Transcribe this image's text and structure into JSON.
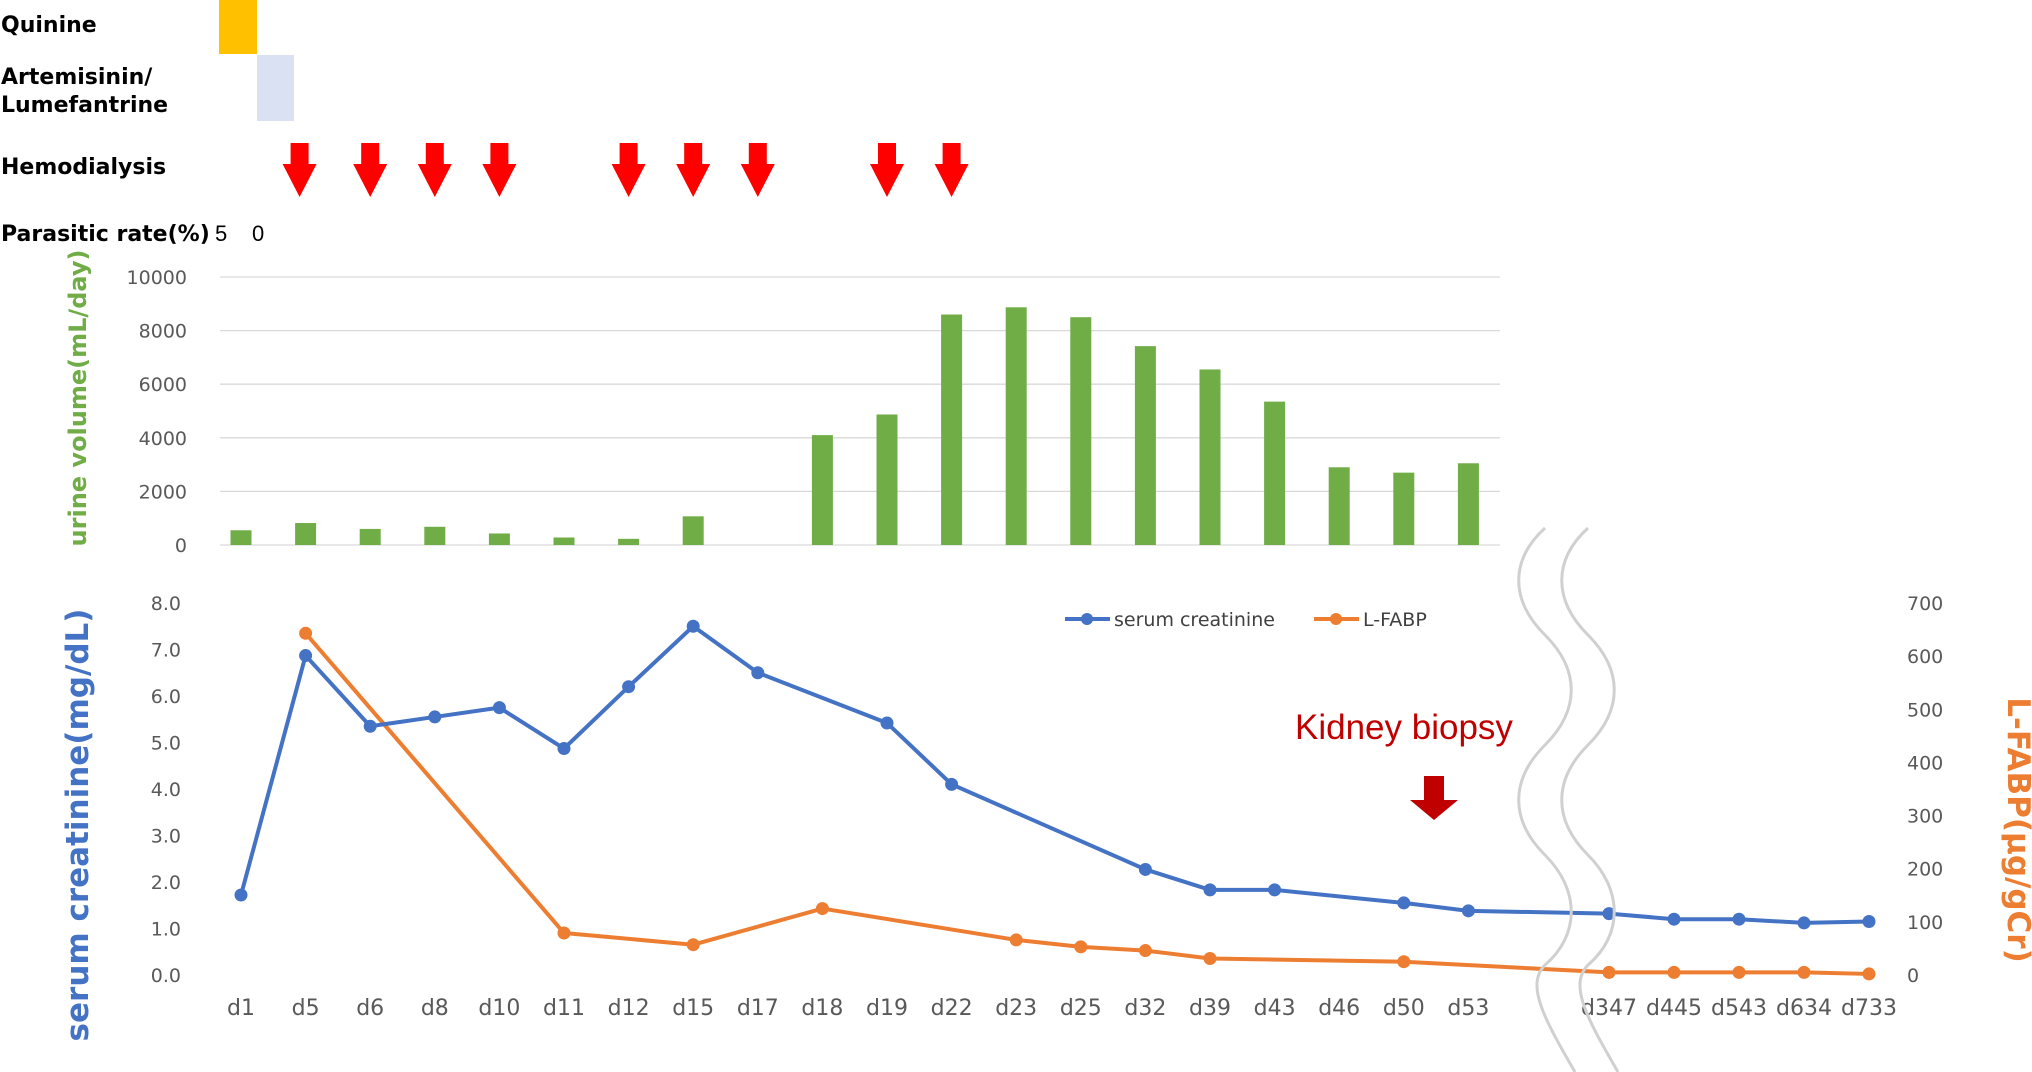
{
  "timeline": {
    "quinine_label": "Quinine",
    "artemisinin_label_1": "Artemisinin/",
    "artemisinin_label_2": "Lumefantrine",
    "hemodialysis_label": "Hemodialysis",
    "parasitic_label": "Parasitic rate(%)",
    "parasitic_values": [
      "5",
      "0"
    ],
    "quinine_color": "#FFC000",
    "artemisinin_color": "#D9E1F2",
    "hemodialysis_days": [
      "d5",
      "d6",
      "d8",
      "d10",
      "d12",
      "d15",
      "d17",
      "d19",
      "d22"
    ],
    "arrow_color": "#FF0000"
  },
  "chart_data": [
    {
      "type": "bar",
      "ylabel": "urine volume(mL/day)",
      "ylim": [
        0,
        10000
      ],
      "yticks": [
        "0",
        "2000",
        "4000",
        "6000",
        "8000",
        "10000"
      ],
      "color": "#70AD47",
      "categories": [
        "d1",
        "d5",
        "d6",
        "d8",
        "d10",
        "d11",
        "d12",
        "d15",
        "d17",
        "d18",
        "d19",
        "d22",
        "d23",
        "d25",
        "d32",
        "d39",
        "d43",
        "d46",
        "d50",
        "d53"
      ],
      "values": [
        550,
        820,
        600,
        680,
        430,
        280,
        230,
        1070,
        null,
        4100,
        4870,
        8600,
        8870,
        8500,
        7420,
        6550,
        5350,
        2900,
        2700,
        3050
      ]
    },
    {
      "type": "line",
      "categories": [
        "d1",
        "d5",
        "d6",
        "d8",
        "d10",
        "d11",
        "d12",
        "d15",
        "d17",
        "d18",
        "d19",
        "d22",
        "d23",
        "d25",
        "d32",
        "d39",
        "d43",
        "d46",
        "d50",
        "d53",
        "",
        "d347",
        "d445",
        "d543",
        "d634",
        "d733"
      ],
      "ylabel": "serum creatinine(mg/dL)",
      "y2label": "L-FABP(μg/gCr)",
      "ylim": [
        0,
        8.0
      ],
      "y2lim": [
        0,
        700
      ],
      "yticks": [
        "0.0",
        "1.0",
        "2.0",
        "3.0",
        "4.0",
        "5.0",
        "6.0",
        "7.0",
        "8.0"
      ],
      "y2ticks": [
        "0",
        "100",
        "200",
        "300",
        "400",
        "500",
        "600",
        "700"
      ],
      "legend_position": "top-right",
      "annotation": "Kidney biopsy",
      "annotation_color": "#C00000",
      "series": [
        {
          "name": "serum creatinine",
          "axis": "left",
          "color": "#4472C4",
          "points": [
            [
              "d1",
              1.72
            ],
            [
              "d5",
              6.87
            ],
            [
              "d6",
              5.35
            ],
            [
              "d8",
              5.55
            ],
            [
              "d10",
              5.75
            ],
            [
              "d11",
              4.87
            ],
            [
              "d12",
              6.2
            ],
            [
              "d15",
              7.5
            ],
            [
              "d17",
              6.5
            ],
            [
              "d19",
              5.42
            ],
            [
              "d22",
              4.1
            ],
            [
              "d32",
              2.27
            ],
            [
              "d39",
              1.83
            ],
            [
              "d43",
              1.83
            ],
            [
              "d50",
              1.55
            ],
            [
              "d53",
              1.38
            ],
            [
              "d347",
              1.32
            ],
            [
              "d445",
              1.2
            ],
            [
              "d543",
              1.2
            ],
            [
              "d634",
              1.12
            ],
            [
              "d733",
              1.15
            ]
          ]
        },
        {
          "name": "L-FABP",
          "axis": "right",
          "color": "#ED7D31",
          "points": [
            [
              "d5",
              643
            ],
            [
              "d11",
              79
            ],
            [
              "d15",
              57
            ],
            [
              "d18",
              125
            ],
            [
              "d23",
              66
            ],
            [
              "d25",
              53
            ],
            [
              "d32",
              46
            ],
            [
              "d39",
              31
            ],
            [
              "d50",
              25
            ],
            [
              "d347",
              5
            ],
            [
              "d445",
              5
            ],
            [
              "d543",
              5
            ],
            [
              "d634",
              5
            ],
            [
              "d733",
              2
            ]
          ]
        }
      ]
    }
  ]
}
